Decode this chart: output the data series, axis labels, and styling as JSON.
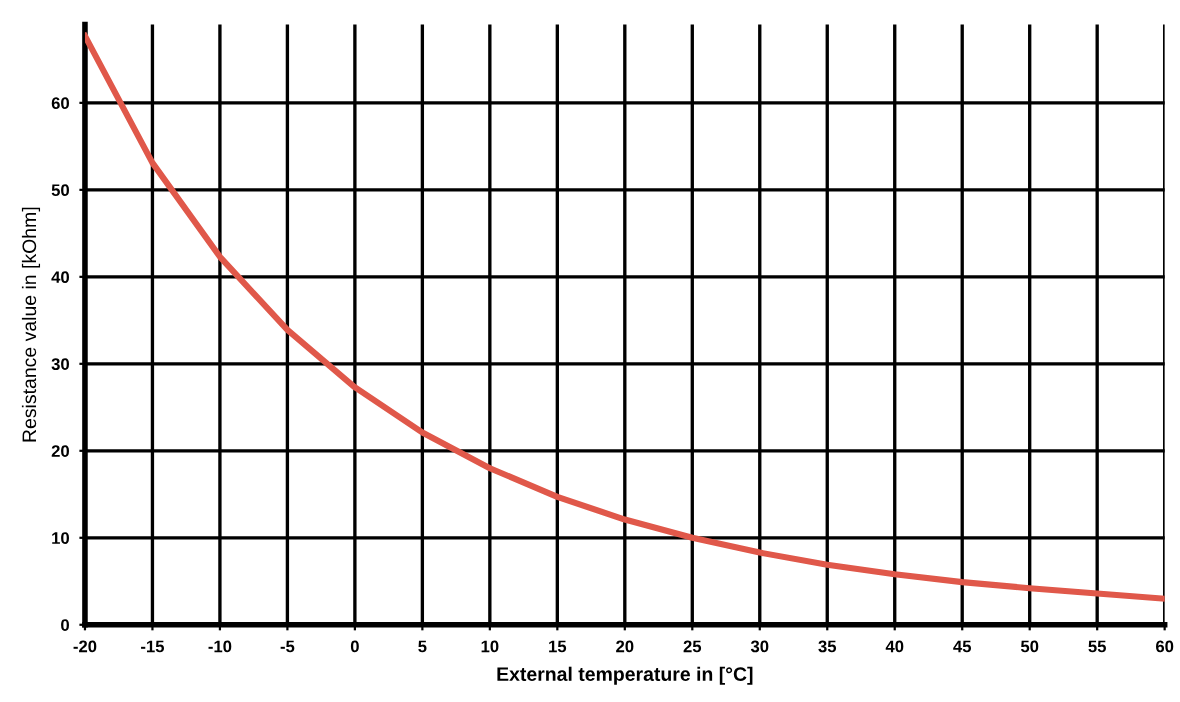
{
  "chart_data": {
    "type": "line",
    "xlabel": "External temperature in [°C]",
    "ylabel": "Resistance value in [kOhm]",
    "x": [
      -20,
      -15,
      -10,
      -5,
      0,
      5,
      10,
      15,
      20,
      25,
      30,
      35,
      40,
      45,
      50,
      55,
      60
    ],
    "series": [
      {
        "color": "#e0584a",
        "values": [
          67.7,
          53.1,
          42.3,
          33.9,
          27.3,
          22.1,
          18.0,
          14.7,
          12.1,
          10.0,
          8.3,
          6.9,
          5.8,
          4.9,
          4.2,
          3.6,
          3.0
        ]
      }
    ],
    "xlim": [
      -20,
      60
    ],
    "xticks": [
      -20,
      -15,
      -10,
      -5,
      0,
      5,
      10,
      15,
      20,
      25,
      30,
      35,
      40,
      45,
      50,
      55,
      60
    ],
    "ylim": [
      0,
      69
    ],
    "yticks": [
      0,
      10,
      20,
      30,
      40,
      50,
      60
    ],
    "grid": true,
    "marker": "none",
    "line_style": "solid"
  }
}
